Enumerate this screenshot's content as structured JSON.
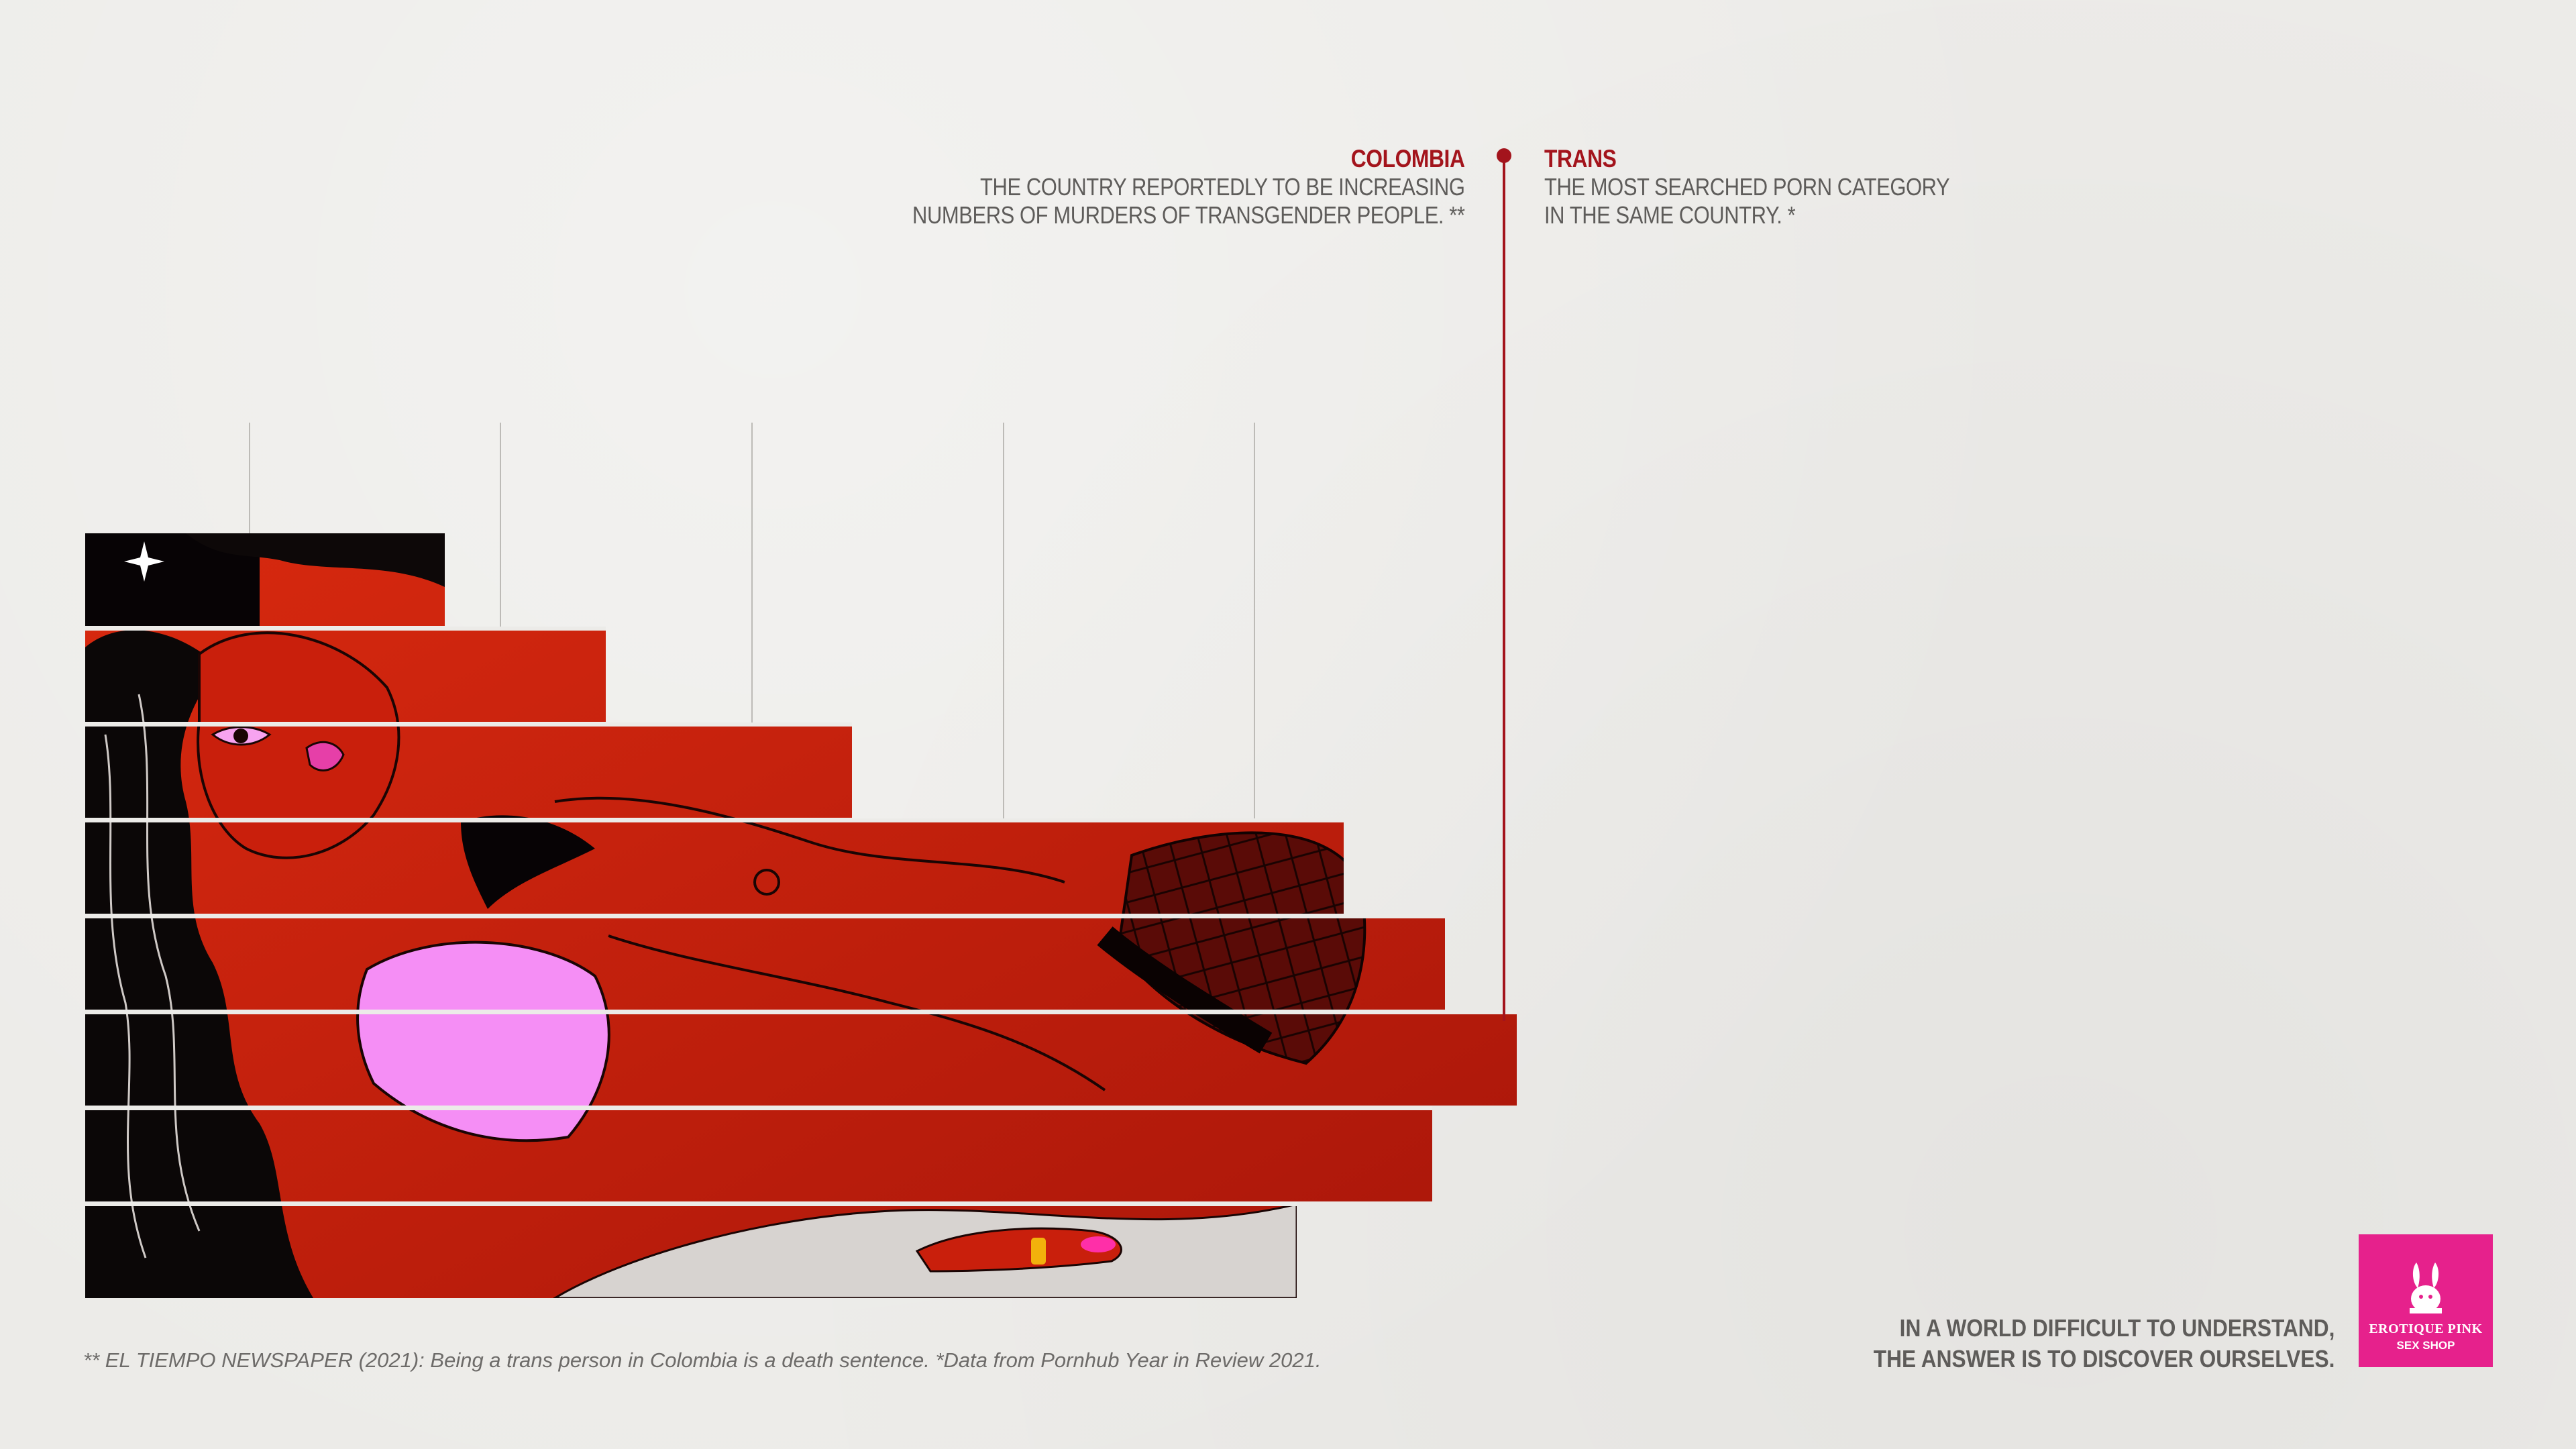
{
  "callout_left": {
    "heading": "COLOMBIA",
    "line1": "THE COUNTRY REPORTEDLY TO BE INCREASING",
    "line2": "NUMBERS OF MURDERS OF TRANSGENDER PEOPLE. **"
  },
  "callout_right": {
    "heading": "TRANS",
    "line1": "THE MOST SEARCHED PORN CATEGORY",
    "line2": "IN THE SAME COUNTRY. *"
  },
  "footnote": "** EL TIEMPO NEWSPAPER (2021): Being a trans person in Colombia is a death sentence. *Data from Pornhub Year in Review 2021.",
  "tagline": {
    "line1": "IN A WORLD DIFFICULT TO UNDERSTAND,",
    "line2": "THE ANSWER IS TO DISCOVER OURSELVES."
  },
  "logo": {
    "name": "EROTIQUE PINK",
    "sub": "SEX SHOP",
    "icon": "rabbit-icon"
  },
  "colors": {
    "accent": "#a3141c",
    "brand_pink": "#e6218c",
    "paper": "#ecebe8",
    "illustration_red": "#c81d0e",
    "lingerie_pink": "#f58ef5"
  }
}
